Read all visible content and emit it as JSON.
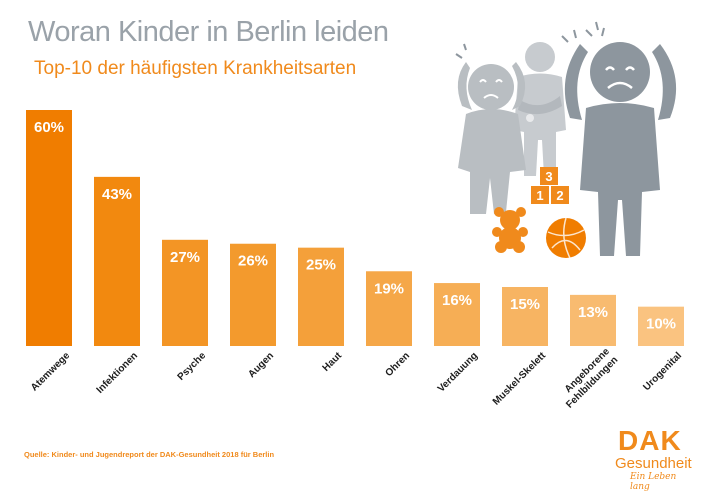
{
  "header": {
    "title": "Woran Kinder in Berlin leiden",
    "subtitle": "Top-10 der häufigsten Krankheitsarten"
  },
  "chart_data": {
    "type": "bar",
    "title": "Woran Kinder in Berlin leiden",
    "subtitle": "Top-10 der häufigsten Krankheitsarten",
    "categories": [
      "Atemwege",
      "Infektionen",
      "Psyche",
      "Augen",
      "Haut",
      "Ohren",
      "Verdauung",
      "Muskel-Skelett",
      "Angeborene Fehlbildungen",
      "Urogenital"
    ],
    "category_lines": [
      [
        "Atemwege"
      ],
      [
        "Infektionen"
      ],
      [
        "Psyche"
      ],
      [
        "Augen"
      ],
      [
        "Haut"
      ],
      [
        "Ohren"
      ],
      [
        "Verdauung"
      ],
      [
        "Muskel-Skelett"
      ],
      [
        "Angeborene",
        "Fehlbildungen"
      ],
      [
        "Urogenital"
      ]
    ],
    "values": [
      60,
      43,
      27,
      26,
      25,
      19,
      16,
      15,
      13,
      10
    ],
    "value_labels": [
      "60%",
      "43%",
      "27%",
      "26%",
      "25%",
      "19%",
      "16%",
      "15%",
      "13%",
      "10%"
    ],
    "unit": "%",
    "ylim": [
      0,
      60
    ],
    "xlabel": "",
    "ylabel": "",
    "grid": false,
    "legend": "none",
    "bar_colors": [
      "#f07d00",
      "#f2890f",
      "#f39525",
      "#f39a2d",
      "#f4a03a",
      "#f5a748",
      "#f6ae55",
      "#f7b462",
      "#f8bb70",
      "#fac380"
    ]
  },
  "illustration": {
    "block_numbers": [
      "3",
      "1",
      "2"
    ],
    "colors": {
      "figure_light": "#c7cbcf",
      "figure_mid": "#b8bcc0",
      "figure_dark": "#8d969e",
      "accent": "#f08a1c"
    }
  },
  "footer": {
    "source": "Quelle: Kinder- und Jugendreport der DAK-Gesundheit 2018 für Berlin"
  },
  "logo": {
    "mark": "DAK",
    "name": "Gesundheit",
    "slogan": "Ein Leben lang"
  }
}
